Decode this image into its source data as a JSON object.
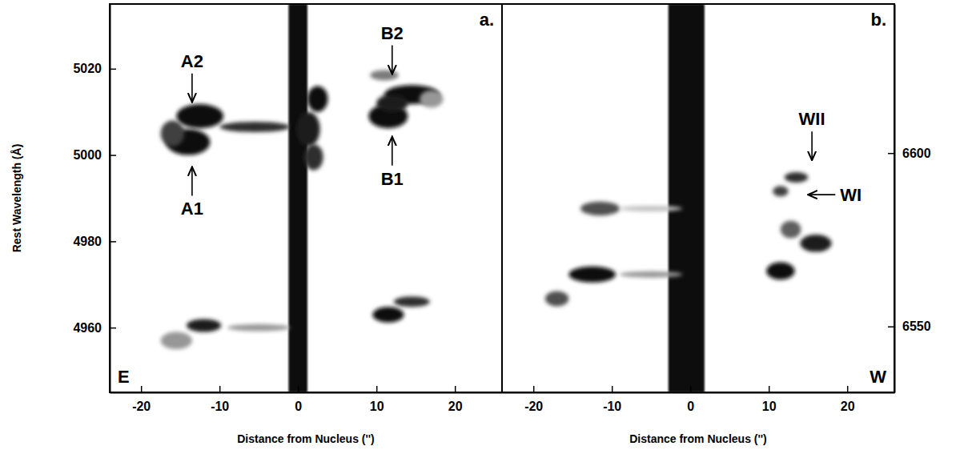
{
  "chart_data": [
    {
      "type": "spectrum_image",
      "label": "a.",
      "side_label": "E",
      "xlabel": "Distance from Nucleus ('')",
      "ylabel": "Rest Wavelength (Å)",
      "xlim": [
        -24,
        26
      ],
      "xticks": [
        -20,
        -10,
        0,
        10,
        20
      ],
      "ylim": [
        4945,
        5035
      ],
      "yticks": [
        4960,
        4980,
        5000,
        5020
      ],
      "continuum": {
        "x": 0,
        "half_width": 1.2
      },
      "blobs": [
        {
          "x": -12.5,
          "y": 5009,
          "dx": 3,
          "dy": 2.8,
          "level": 0.95
        },
        {
          "x": -14,
          "y": 5003,
          "dx": 2.8,
          "dy": 3,
          "level": 0.95
        },
        {
          "x": -16,
          "y": 5005,
          "dx": 1.5,
          "dy": 3,
          "level": 0.8
        },
        {
          "x": -5.5,
          "y": 5006.5,
          "dx": 4.5,
          "dy": 1.2,
          "level": 0.85
        },
        {
          "x": 2.5,
          "y": 5013,
          "dx": 1.3,
          "dy": 3,
          "level": 0.95
        },
        {
          "x": 2,
          "y": 4999.5,
          "dx": 1.2,
          "dy": 3,
          "level": 0.85
        },
        {
          "x": 1.3,
          "y": 5006,
          "dx": 1.5,
          "dy": 4,
          "level": 0.9
        },
        {
          "x": 11.5,
          "y": 5009,
          "dx": 2.5,
          "dy": 2.8,
          "level": 0.95
        },
        {
          "x": 14.5,
          "y": 5014,
          "dx": 3.5,
          "dy": 2.2,
          "level": 0.95
        },
        {
          "x": 12,
          "y": 5012,
          "dx": 2,
          "dy": 2,
          "level": 0.9
        },
        {
          "x": 11,
          "y": 5018.5,
          "dx": 1.8,
          "dy": 1.2,
          "level": 0.6
        },
        {
          "x": 17,
          "y": 5013,
          "dx": 1.5,
          "dy": 2,
          "level": 0.5
        },
        {
          "x": -12,
          "y": 4960.5,
          "dx": 2.2,
          "dy": 1.5,
          "level": 0.9
        },
        {
          "x": -15.5,
          "y": 4957,
          "dx": 2,
          "dy": 2,
          "level": 0.5
        },
        {
          "x": -5,
          "y": 4960,
          "dx": 4,
          "dy": 0.8,
          "level": 0.5
        },
        {
          "x": 11.5,
          "y": 4963,
          "dx": 2,
          "dy": 1.8,
          "level": 0.95
        },
        {
          "x": 14.5,
          "y": 4966,
          "dx": 2.3,
          "dy": 1.2,
          "level": 0.85
        }
      ],
      "annotations": [
        {
          "text": "A2",
          "x": -13.5,
          "y": 5011.5,
          "arrow": "down"
        },
        {
          "text": "A1",
          "x": -13.5,
          "y": 4998,
          "arrow": "up"
        },
        {
          "text": "B2",
          "x": 12,
          "y": 5018,
          "arrow": "down"
        },
        {
          "text": "B1",
          "x": 12,
          "y": 5005,
          "arrow": "up"
        }
      ]
    },
    {
      "type": "spectrum_image",
      "label": "b.",
      "side_label": "W",
      "xlabel": "Distance from Nucleus ('')",
      "xlim": [
        -24,
        26
      ],
      "xticks": [
        -20,
        -10,
        0,
        10,
        20
      ],
      "y2lim": [
        6531,
        6643
      ],
      "y2ticks": [
        6550,
        6600
      ],
      "continuum": {
        "x": -0.5,
        "half_width": 2.3
      },
      "blobs": [
        {
          "x": 13.5,
          "y": 6593,
          "dx": 1.5,
          "dy": 1.5,
          "level": 0.85
        },
        {
          "x": 11.5,
          "y": 6589,
          "dx": 1,
          "dy": 1.5,
          "level": 0.8
        },
        {
          "x": 12.8,
          "y": 6578,
          "dx": 1.3,
          "dy": 2.5,
          "level": 0.7
        },
        {
          "x": 16,
          "y": 6574,
          "dx": 2,
          "dy": 2.5,
          "level": 0.9
        },
        {
          "x": 11.5,
          "y": 6566,
          "dx": 1.8,
          "dy": 2.5,
          "level": 0.95
        },
        {
          "x": -11.5,
          "y": 6584,
          "dx": 2.5,
          "dy": 2,
          "level": 0.75
        },
        {
          "x": -5,
          "y": 6584,
          "dx": 4,
          "dy": 0.8,
          "level": 0.35
        },
        {
          "x": -12.5,
          "y": 6565,
          "dx": 3,
          "dy": 2.3,
          "level": 0.95
        },
        {
          "x": -17,
          "y": 6558,
          "dx": 1.5,
          "dy": 2.2,
          "level": 0.75
        },
        {
          "x": -5,
          "y": 6565,
          "dx": 4,
          "dy": 0.9,
          "level": 0.5
        }
      ],
      "annotations": [
        {
          "text": "WII",
          "x": 15.5,
          "y": 6597,
          "arrow": "down"
        },
        {
          "text": "WI",
          "x": 14.6,
          "y": 6588,
          "arrow": "left"
        }
      ]
    }
  ]
}
